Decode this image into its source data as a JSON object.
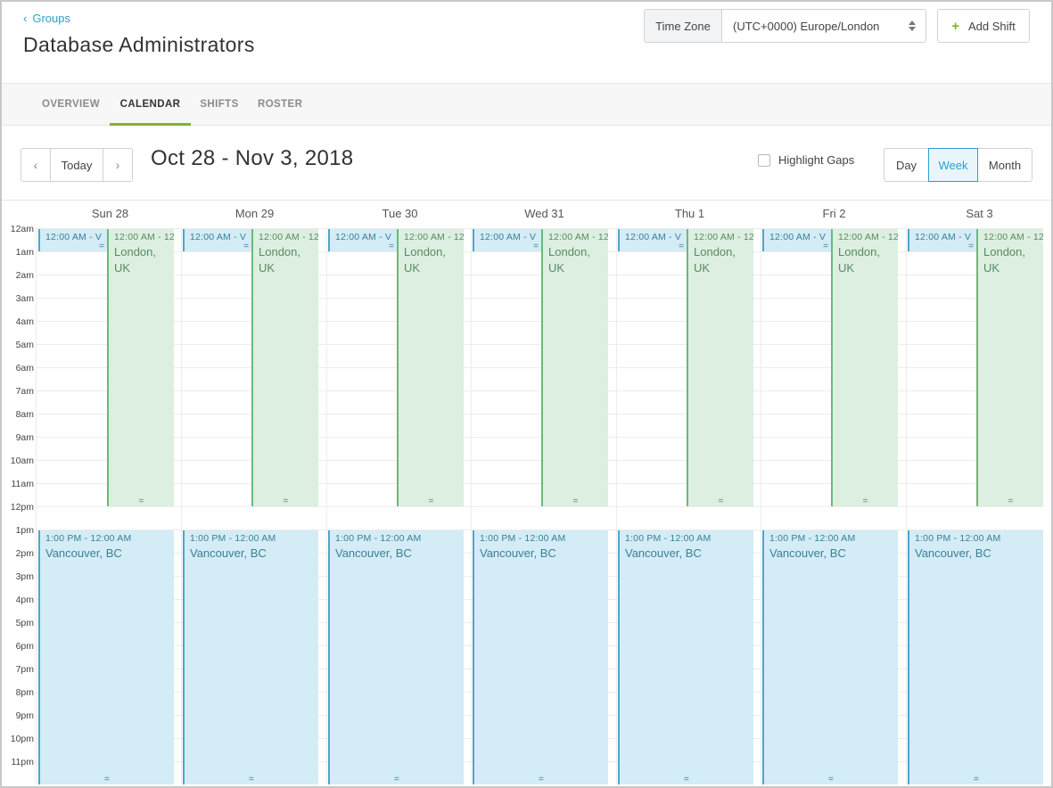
{
  "header": {
    "back_label": "Groups",
    "title": "Database Administrators",
    "timezone_label": "Time Zone",
    "timezone_value": "(UTC+0000) Europe/London",
    "add_shift_label": "Add Shift"
  },
  "tabs": [
    {
      "label": "OVERVIEW",
      "active": false
    },
    {
      "label": "CALENDAR",
      "active": true
    },
    {
      "label": "SHIFTS",
      "active": false
    },
    {
      "label": "ROSTER",
      "active": false
    }
  ],
  "toolbar": {
    "prev_icon": "chevron-left-icon",
    "today_label": "Today",
    "next_icon": "chevron-right-icon",
    "range_title": "Oct 28 - Nov 3, 2018",
    "highlight_gaps_label": "Highlight Gaps",
    "highlight_gaps_checked": false,
    "views": [
      "Day",
      "Week",
      "Month"
    ],
    "active_view": "Week"
  },
  "calendar": {
    "days": [
      "Sun 28",
      "Mon 29",
      "Tue 30",
      "Wed 31",
      "Thu 1",
      "Fri 2",
      "Sat 3"
    ],
    "hours": [
      "12am",
      "1am",
      "2am",
      "3am",
      "4am",
      "5am",
      "6am",
      "7am",
      "8am",
      "9am",
      "10am",
      "11am",
      "12pm",
      "1pm",
      "2pm",
      "3pm",
      "4pm",
      "5pm",
      "6pm",
      "7pm",
      "8pm",
      "9pm",
      "10pm",
      "11pm"
    ],
    "events": {
      "early_blue": {
        "time": "12:00 AM - V",
        "start_hour": 0,
        "end_hour": 1,
        "color": "#d3ecf5"
      },
      "london": {
        "time": "12:00 AM - 12",
        "location": "London, UK",
        "start_hour": 0,
        "end_hour": 12,
        "color": "#dcefe0"
      },
      "vancouver": {
        "time": "1:00 PM - 12:00 AM",
        "location": "Vancouver, BC",
        "start_hour": 13,
        "end_hour": 24,
        "color": "#d3ecf5"
      }
    }
  },
  "colors": {
    "accent": "#2a9fcf",
    "tab_active": "#7ab828"
  }
}
